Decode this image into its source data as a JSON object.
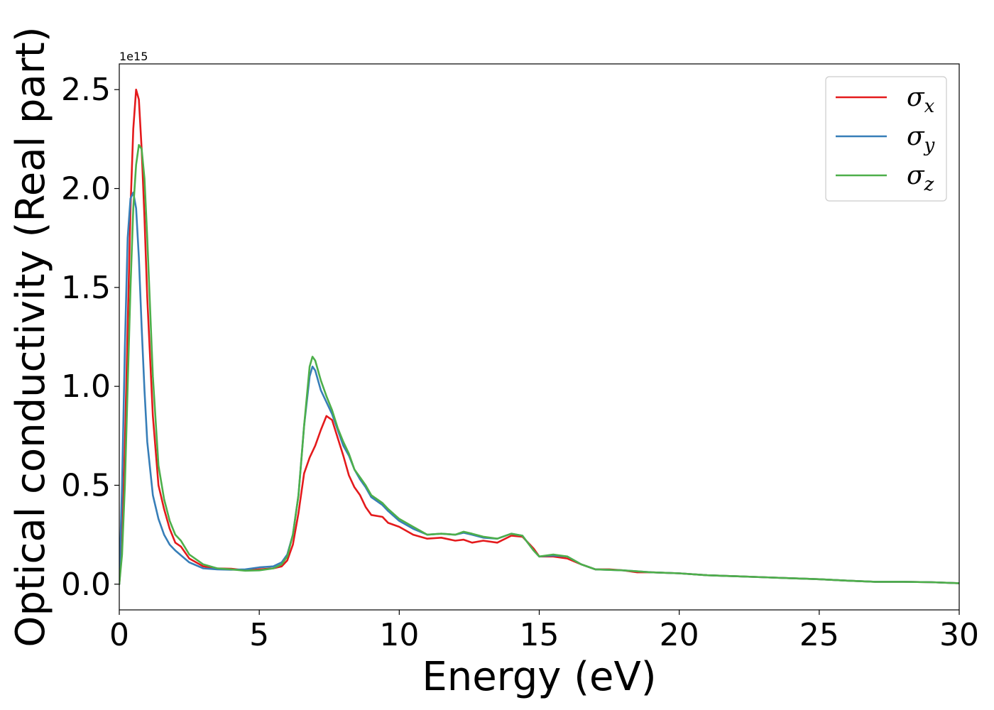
{
  "chart_data": {
    "type": "line",
    "xlabel": "Energy (eV)",
    "ylabel": "Optical conductivity (Real part)",
    "y_exponent_label": "1e15",
    "y_scale": 1000000000000000.0,
    "xlim": [
      0,
      30
    ],
    "ylim": [
      -0.13,
      2.63
    ],
    "x_ticks": [
      0,
      5,
      10,
      15,
      20,
      25,
      30
    ],
    "x_tick_labels": [
      "0",
      "5",
      "10",
      "15",
      "20",
      "25",
      "30"
    ],
    "y_ticks": [
      0.0,
      0.5,
      1.0,
      1.5,
      2.0,
      2.5
    ],
    "y_tick_labels": [
      "0.0",
      "0.5",
      "1.0",
      "1.5",
      "2.0",
      "2.5"
    ],
    "grid": false,
    "legend_position": "top-right",
    "series": [
      {
        "name": "σx",
        "legend_base": "σ",
        "legend_sub": "x",
        "color": "#e41a1c",
        "points": [
          [
            0,
            0
          ],
          [
            0.1,
            0.2
          ],
          [
            0.2,
            0.7
          ],
          [
            0.3,
            1.3
          ],
          [
            0.4,
            1.9
          ],
          [
            0.5,
            2.3
          ],
          [
            0.6,
            2.5
          ],
          [
            0.7,
            2.45
          ],
          [
            0.8,
            2.2
          ],
          [
            0.9,
            1.85
          ],
          [
            1.0,
            1.45
          ],
          [
            1.2,
            0.85
          ],
          [
            1.4,
            0.5
          ],
          [
            1.6,
            0.38
          ],
          [
            1.8,
            0.28
          ],
          [
            2.0,
            0.21
          ],
          [
            2.2,
            0.19
          ],
          [
            2.5,
            0.13
          ],
          [
            3.0,
            0.09
          ],
          [
            3.5,
            0.08
          ],
          [
            4.0,
            0.078
          ],
          [
            4.5,
            0.07
          ],
          [
            5.0,
            0.075
          ],
          [
            5.5,
            0.08
          ],
          [
            5.8,
            0.09
          ],
          [
            6.0,
            0.12
          ],
          [
            6.2,
            0.2
          ],
          [
            6.4,
            0.36
          ],
          [
            6.6,
            0.56
          ],
          [
            6.8,
            0.64
          ],
          [
            7.0,
            0.7
          ],
          [
            7.2,
            0.78
          ],
          [
            7.4,
            0.85
          ],
          [
            7.6,
            0.83
          ],
          [
            7.8,
            0.74
          ],
          [
            8.0,
            0.65
          ],
          [
            8.2,
            0.55
          ],
          [
            8.4,
            0.49
          ],
          [
            8.6,
            0.45
          ],
          [
            8.8,
            0.39
          ],
          [
            9.0,
            0.35
          ],
          [
            9.4,
            0.34
          ],
          [
            9.6,
            0.31
          ],
          [
            10.0,
            0.29
          ],
          [
            10.5,
            0.25
          ],
          [
            11.0,
            0.23
          ],
          [
            11.5,
            0.235
          ],
          [
            12.0,
            0.22
          ],
          [
            12.3,
            0.225
          ],
          [
            12.6,
            0.21
          ],
          [
            13.0,
            0.22
          ],
          [
            13.5,
            0.21
          ],
          [
            14.0,
            0.245
          ],
          [
            14.4,
            0.24
          ],
          [
            14.8,
            0.18
          ],
          [
            15.0,
            0.14
          ],
          [
            15.5,
            0.14
          ],
          [
            16.0,
            0.13
          ],
          [
            16.5,
            0.1
          ],
          [
            17.0,
            0.075
          ],
          [
            17.5,
            0.075
          ],
          [
            18.0,
            0.07
          ],
          [
            18.5,
            0.06
          ],
          [
            19.0,
            0.06
          ],
          [
            20.0,
            0.055
          ],
          [
            21.0,
            0.045
          ],
          [
            22.0,
            0.04
          ],
          [
            23.0,
            0.035
          ],
          [
            24.0,
            0.03
          ],
          [
            25.0,
            0.025
          ],
          [
            26.0,
            0.018
          ],
          [
            27.0,
            0.012
          ],
          [
            28.0,
            0.012
          ],
          [
            29.0,
            0.01
          ],
          [
            30.0,
            0.005
          ]
        ]
      },
      {
        "name": "σy",
        "legend_base": "σ",
        "legend_sub": "y",
        "color": "#377eb8",
        "points": [
          [
            0,
            0
          ],
          [
            0.1,
            0.5
          ],
          [
            0.2,
            1.2
          ],
          [
            0.3,
            1.75
          ],
          [
            0.4,
            1.95
          ],
          [
            0.5,
            1.98
          ],
          [
            0.6,
            1.9
          ],
          [
            0.7,
            1.65
          ],
          [
            0.8,
            1.3
          ],
          [
            0.9,
            0.98
          ],
          [
            1.0,
            0.72
          ],
          [
            1.2,
            0.45
          ],
          [
            1.4,
            0.33
          ],
          [
            1.6,
            0.25
          ],
          [
            1.8,
            0.2
          ],
          [
            2.0,
            0.17
          ],
          [
            2.5,
            0.11
          ],
          [
            3.0,
            0.08
          ],
          [
            3.5,
            0.075
          ],
          [
            4.0,
            0.073
          ],
          [
            4.5,
            0.075
          ],
          [
            5.0,
            0.085
          ],
          [
            5.5,
            0.09
          ],
          [
            5.8,
            0.11
          ],
          [
            6.0,
            0.15
          ],
          [
            6.2,
            0.25
          ],
          [
            6.4,
            0.45
          ],
          [
            6.6,
            0.8
          ],
          [
            6.8,
            1.05
          ],
          [
            6.9,
            1.1
          ],
          [
            7.0,
            1.08
          ],
          [
            7.2,
            0.98
          ],
          [
            7.4,
            0.92
          ],
          [
            7.6,
            0.86
          ],
          [
            7.8,
            0.78
          ],
          [
            8.0,
            0.7
          ],
          [
            8.2,
            0.65
          ],
          [
            8.4,
            0.58
          ],
          [
            8.6,
            0.53
          ],
          [
            8.8,
            0.49
          ],
          [
            9.0,
            0.44
          ],
          [
            9.4,
            0.4
          ],
          [
            9.6,
            0.37
          ],
          [
            10.0,
            0.32
          ],
          [
            10.5,
            0.28
          ],
          [
            11.0,
            0.25
          ],
          [
            11.5,
            0.255
          ],
          [
            12.0,
            0.25
          ],
          [
            12.3,
            0.26
          ],
          [
            12.6,
            0.25
          ],
          [
            13.0,
            0.235
          ],
          [
            13.5,
            0.23
          ],
          [
            14.0,
            0.255
          ],
          [
            14.4,
            0.245
          ],
          [
            14.8,
            0.17
          ],
          [
            15.0,
            0.14
          ],
          [
            15.5,
            0.145
          ],
          [
            16.0,
            0.14
          ],
          [
            16.5,
            0.1
          ],
          [
            17.0,
            0.075
          ],
          [
            18.0,
            0.07
          ],
          [
            19.0,
            0.06
          ],
          [
            20.0,
            0.055
          ],
          [
            21.0,
            0.045
          ],
          [
            22.0,
            0.04
          ],
          [
            23.0,
            0.035
          ],
          [
            24.0,
            0.03
          ],
          [
            25.0,
            0.025
          ],
          [
            26.0,
            0.018
          ],
          [
            27.0,
            0.012
          ],
          [
            28.0,
            0.012
          ],
          [
            29.0,
            0.01
          ],
          [
            30.0,
            0.005
          ]
        ]
      },
      {
        "name": "σz",
        "legend_base": "σ",
        "legend_sub": "z",
        "color": "#4daf4a",
        "points": [
          [
            0,
            0
          ],
          [
            0.1,
            0.15
          ],
          [
            0.2,
            0.5
          ],
          [
            0.3,
            1.0
          ],
          [
            0.4,
            1.5
          ],
          [
            0.5,
            1.9
          ],
          [
            0.6,
            2.12
          ],
          [
            0.7,
            2.22
          ],
          [
            0.8,
            2.2
          ],
          [
            0.9,
            2.05
          ],
          [
            1.0,
            1.75
          ],
          [
            1.2,
            1.05
          ],
          [
            1.4,
            0.6
          ],
          [
            1.6,
            0.43
          ],
          [
            1.8,
            0.32
          ],
          [
            2.0,
            0.25
          ],
          [
            2.2,
            0.22
          ],
          [
            2.5,
            0.15
          ],
          [
            3.0,
            0.1
          ],
          [
            3.5,
            0.08
          ],
          [
            4.0,
            0.075
          ],
          [
            4.5,
            0.068
          ],
          [
            5.0,
            0.07
          ],
          [
            5.5,
            0.08
          ],
          [
            5.8,
            0.1
          ],
          [
            6.0,
            0.14
          ],
          [
            6.2,
            0.25
          ],
          [
            6.4,
            0.45
          ],
          [
            6.6,
            0.8
          ],
          [
            6.8,
            1.1
          ],
          [
            6.9,
            1.15
          ],
          [
            7.0,
            1.13
          ],
          [
            7.2,
            1.03
          ],
          [
            7.4,
            0.95
          ],
          [
            7.6,
            0.88
          ],
          [
            7.8,
            0.79
          ],
          [
            8.0,
            0.72
          ],
          [
            8.2,
            0.66
          ],
          [
            8.4,
            0.58
          ],
          [
            8.6,
            0.54
          ],
          [
            8.8,
            0.5
          ],
          [
            9.0,
            0.45
          ],
          [
            9.4,
            0.41
          ],
          [
            9.6,
            0.38
          ],
          [
            10.0,
            0.33
          ],
          [
            10.5,
            0.29
          ],
          [
            11.0,
            0.25
          ],
          [
            11.5,
            0.255
          ],
          [
            12.0,
            0.25
          ],
          [
            12.3,
            0.265
          ],
          [
            12.6,
            0.255
          ],
          [
            13.0,
            0.24
          ],
          [
            13.5,
            0.23
          ],
          [
            14.0,
            0.255
          ],
          [
            14.4,
            0.245
          ],
          [
            14.8,
            0.17
          ],
          [
            15.0,
            0.14
          ],
          [
            15.5,
            0.15
          ],
          [
            16.0,
            0.14
          ],
          [
            16.5,
            0.1
          ],
          [
            17.0,
            0.075
          ],
          [
            18.0,
            0.07
          ],
          [
            19.0,
            0.06
          ],
          [
            20.0,
            0.055
          ],
          [
            21.0,
            0.045
          ],
          [
            22.0,
            0.04
          ],
          [
            23.0,
            0.035
          ],
          [
            24.0,
            0.03
          ],
          [
            25.0,
            0.025
          ],
          [
            26.0,
            0.018
          ],
          [
            27.0,
            0.012
          ],
          [
            28.0,
            0.012
          ],
          [
            29.0,
            0.01
          ],
          [
            30.0,
            0.005
          ]
        ]
      }
    ]
  }
}
